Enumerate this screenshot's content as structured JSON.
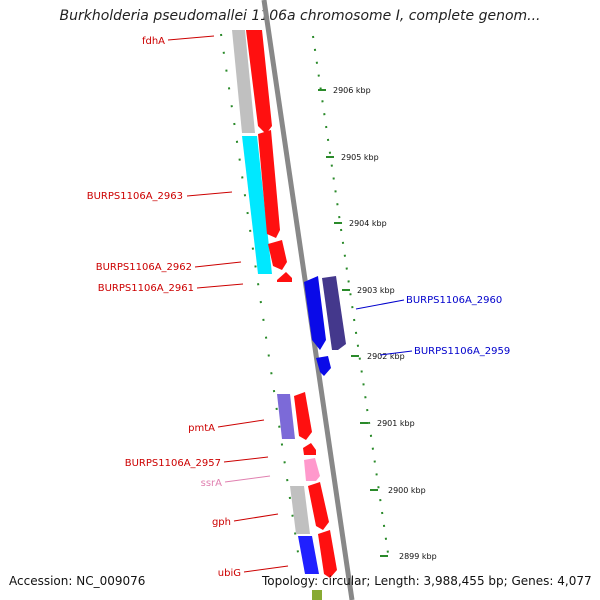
{
  "title": "Burkholderia pseudomallei 1106a chromosome I, complete genom...",
  "footer": {
    "accession": "Accession: NC_009076",
    "stats": "Topology: circular; Length: 3,988,455 bp; Genes: 4,077"
  },
  "colors": {
    "backbone": "#888888",
    "forward_label": "#cc0000",
    "reverse_label": "#0000cc",
    "rna_label": "#e080b0",
    "tick": "#228822",
    "cds": "#ff0000",
    "gene_gray": "#c0c0c0",
    "cyan": "#00ffff",
    "blue": "#0000ff",
    "purple": "#6050b0",
    "pink": "#ff99cc"
  },
  "kbp_ticks": [
    {
      "label": "2906 kbp",
      "pos": 2906
    },
    {
      "label": "2905 kbp",
      "pos": 2905
    },
    {
      "label": "2904 kbp",
      "pos": 2904
    },
    {
      "label": "2903 kbp",
      "pos": 2903
    },
    {
      "label": "2902 kbp",
      "pos": 2902
    },
    {
      "label": "2901 kbp",
      "pos": 2901
    },
    {
      "label": "2900 kbp",
      "pos": 2900
    },
    {
      "label": "2899 kbp",
      "pos": 2899
    }
  ],
  "genes": [
    {
      "name": "fdhA",
      "strand": "forward",
      "type": "cds"
    },
    {
      "name": "BURPS1106A_2963",
      "strand": "forward",
      "type": "cds"
    },
    {
      "name": "BURPS1106A_2962",
      "strand": "forward",
      "type": "cds"
    },
    {
      "name": "BURPS1106A_2961",
      "strand": "forward",
      "type": "cds"
    },
    {
      "name": "BURPS1106A_2960",
      "strand": "reverse",
      "type": "cds"
    },
    {
      "name": "BURPS1106A_2959",
      "strand": "reverse",
      "type": "cds"
    },
    {
      "name": "pmtA",
      "strand": "forward",
      "type": "cds"
    },
    {
      "name": "BURPS1106A_2957",
      "strand": "forward",
      "type": "cds"
    },
    {
      "name": "ssrA",
      "strand": "forward",
      "type": "rna"
    },
    {
      "name": "gph",
      "strand": "forward",
      "type": "cds"
    },
    {
      "name": "ubiG",
      "strand": "forward",
      "type": "cds"
    }
  ]
}
